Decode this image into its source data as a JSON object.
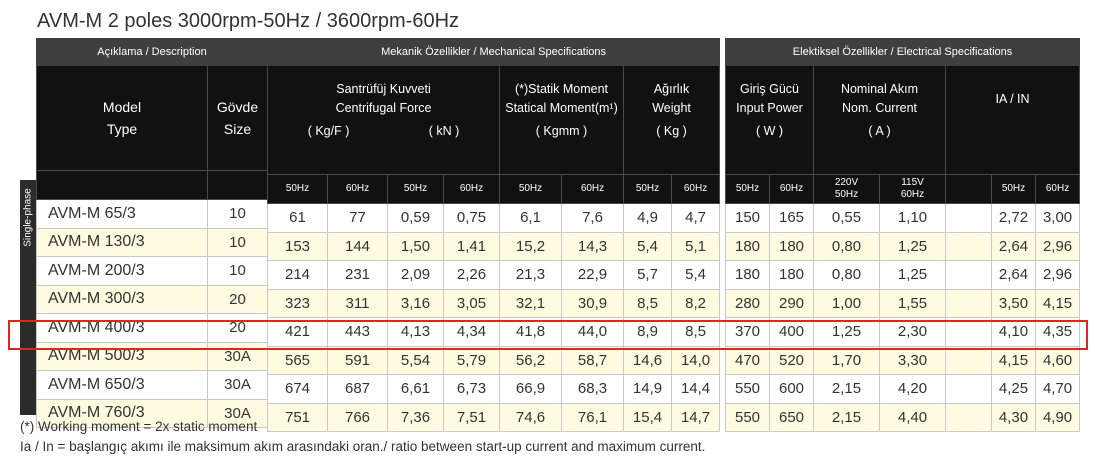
{
  "title": "AVM-M 2 poles 3000rpm-50Hz  / 3600rpm-60Hz",
  "section_headers": {
    "description": "Açıklama / Description",
    "mechanical": "Mekanik Özellikler / Mechanical Specifications",
    "electrical": "Elektiksel Özellikler / Electrical Specifications"
  },
  "columns": {
    "model": [
      "Model",
      "Type"
    ],
    "body": [
      "Gövde",
      "Size"
    ],
    "centrifugal": [
      "Santrüfüj  Kuvveti",
      "Centrifugal Force"
    ],
    "centrifugal_units": [
      "( Kg/F )",
      "( kN )"
    ],
    "static_moment": [
      "(*)Statik Moment",
      "Statical Moment(m¹)"
    ],
    "static_moment_unit": "( Kgmm )",
    "weight": [
      "Ağırlık",
      "Weight"
    ],
    "weight_unit": "( Kg )",
    "input_power": [
      "Giriş Gücü",
      "Input Power"
    ],
    "input_power_unit": "( W )",
    "nominal_current": [
      "Nominal Akım",
      "Nom. Current"
    ],
    "nominal_current_unit": "( A )",
    "ia_in": "IA / IN"
  },
  "subheaders": {
    "hz50": "50Hz",
    "hz60": "60Hz",
    "v220": [
      "220V",
      "50Hz"
    ],
    "v115": [
      "115V",
      "60Hz"
    ]
  },
  "side_label": "Single-phase",
  "rows": [
    {
      "model": "AVM-M 65/3",
      "size": "10",
      "cf_kgf_50": "61",
      "cf_kgf_60": "77",
      "cf_kn_50": "0,59",
      "cf_kn_60": "0,75",
      "sm_50": "6,1",
      "sm_60": "7,6",
      "w_50": "4,9",
      "w_60": "4,7",
      "p_50": "150",
      "p_60": "165",
      "i_220": "0,55",
      "i_115": "1,10",
      "ia_50": "2,72",
      "ia_60": "3,00"
    },
    {
      "model": "AVM-M 130/3",
      "size": "10",
      "cf_kgf_50": "153",
      "cf_kgf_60": "144",
      "cf_kn_50": "1,50",
      "cf_kn_60": "1,41",
      "sm_50": "15,2",
      "sm_60": "14,3",
      "w_50": "5,4",
      "w_60": "5,1",
      "p_50": "180",
      "p_60": "180",
      "i_220": "0,80",
      "i_115": "1,25",
      "ia_50": "2,64",
      "ia_60": "2,96"
    },
    {
      "model": "AVM-M 200/3",
      "size": "10",
      "cf_kgf_50": "214",
      "cf_kgf_60": "231",
      "cf_kn_50": "2,09",
      "cf_kn_60": "2,26",
      "sm_50": "21,3",
      "sm_60": "22,9",
      "w_50": "5,7",
      "w_60": "5,4",
      "p_50": "180",
      "p_60": "180",
      "i_220": "0,80",
      "i_115": "1,25",
      "ia_50": "2,64",
      "ia_60": "2,96"
    },
    {
      "model": "AVM-M 300/3",
      "size": "20",
      "cf_kgf_50": "323",
      "cf_kgf_60": "311",
      "cf_kn_50": "3,16",
      "cf_kn_60": "3,05",
      "sm_50": "32,1",
      "sm_60": "30,9",
      "w_50": "8,5",
      "w_60": "8,2",
      "p_50": "280",
      "p_60": "290",
      "i_220": "1,00",
      "i_115": "1,55",
      "ia_50": "3,50",
      "ia_60": "4,15"
    },
    {
      "model": "AVM-M 400/3",
      "size": "20",
      "cf_kgf_50": "421",
      "cf_kgf_60": "443",
      "cf_kn_50": "4,13",
      "cf_kn_60": "4,34",
      "sm_50": "41,8",
      "sm_60": "44,0",
      "w_50": "8,9",
      "w_60": "8,5",
      "p_50": "370",
      "p_60": "400",
      "i_220": "1,25",
      "i_115": "2,30",
      "ia_50": "4,10",
      "ia_60": "4,35"
    },
    {
      "model": "AVM-M 500/3",
      "size": "30A",
      "cf_kgf_50": "565",
      "cf_kgf_60": "591",
      "cf_kn_50": "5,54",
      "cf_kn_60": "5,79",
      "sm_50": "56,2",
      "sm_60": "58,7",
      "w_50": "14,6",
      "w_60": "14,0",
      "p_50": "470",
      "p_60": "520",
      "i_220": "1,70",
      "i_115": "3,30",
      "ia_50": "4,15",
      "ia_60": "4,60"
    },
    {
      "model": "AVM-M 650/3",
      "size": "30A",
      "cf_kgf_50": "674",
      "cf_kgf_60": "687",
      "cf_kn_50": "6,61",
      "cf_kn_60": "6,73",
      "sm_50": "66,9",
      "sm_60": "68,3",
      "w_50": "14,9",
      "w_60": "14,4",
      "p_50": "550",
      "p_60": "600",
      "i_220": "2,15",
      "i_115": "4,20",
      "ia_50": "4,25",
      "ia_60": "4,70"
    },
    {
      "model": "AVM-M 760/3",
      "size": "30A",
      "cf_kgf_50": "751",
      "cf_kgf_60": "766",
      "cf_kn_50": "7,36",
      "cf_kn_60": "7,51",
      "sm_50": "74,6",
      "sm_60": "76,1",
      "w_50": "15,4",
      "w_60": "14,7",
      "p_50": "550",
      "p_60": "650",
      "i_220": "2,15",
      "i_115": "4,40",
      "ia_50": "4,30",
      "ia_60": "4,90"
    }
  ],
  "notes": [
    "(*) Working moment = 2x static moment",
    "Ia / In = başlangıç akımı ile maksimum akım arasındaki oran./ ratio between start-up current and maximum current."
  ],
  "colors": {
    "header_dark": "#111111",
    "header_band": "#3f3f3f",
    "row_alt": "#fffbe0",
    "highlight": "#e32222"
  }
}
